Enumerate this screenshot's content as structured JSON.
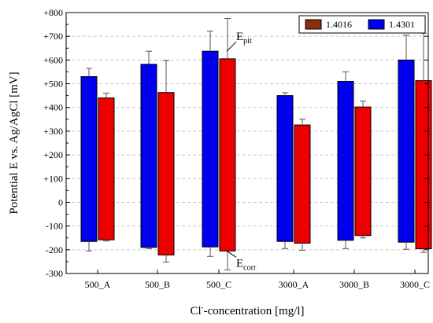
{
  "chart_data": {
    "type": "bar",
    "subtype": "floating-range-with-error-bars",
    "categories": [
      "500_A",
      "500_B",
      "500_C",
      "3000_A",
      "3000_B",
      "3000_C"
    ],
    "xlabel": {
      "main": "Cl",
      "sup": "-",
      "rest": "-concentration [mg/l]"
    },
    "ylabel": "Potential E vs. Ag/AgCl [mV]",
    "ylim": [
      -300,
      800
    ],
    "ytick_step": 100,
    "yticks": [
      "-300",
      "-200",
      "-100",
      "0",
      "+100",
      "+200",
      "+300",
      "+400",
      "+500",
      "+600",
      "+700",
      "+800"
    ],
    "grid": true,
    "legend_position": "top-right",
    "series": [
      {
        "name": "1.4301",
        "color": "#0000ee",
        "position": "left",
        "top": [
          530,
          582,
          637,
          450,
          510,
          600
        ],
        "top_err": [
          35,
          55,
          85,
          12,
          40,
          105
        ],
        "bottom": [
          -165,
          -190,
          -188,
          -165,
          -160,
          -168
        ],
        "bottom_err": [
          40,
          5,
          40,
          30,
          35,
          30
        ]
      },
      {
        "name": "1.4016",
        "color": "#ee0000",
        "legend_color": "#8b2e0c",
        "position": "right",
        "top": [
          440,
          463,
          605,
          326,
          402,
          513
        ],
        "top_err": [
          20,
          135,
          170,
          25,
          25,
          200
        ],
        "bottom": [
          -158,
          -222,
          -205,
          -172,
          -140,
          -196
        ],
        "bottom_err": [
          5,
          30,
          80,
          30,
          10,
          15
        ]
      }
    ],
    "annotations": [
      {
        "base": "E",
        "sub": "pit",
        "category": "500_C",
        "value": 637
      },
      {
        "base": "E",
        "sub": "corr",
        "category": "500_C",
        "value": -205
      }
    ]
  }
}
